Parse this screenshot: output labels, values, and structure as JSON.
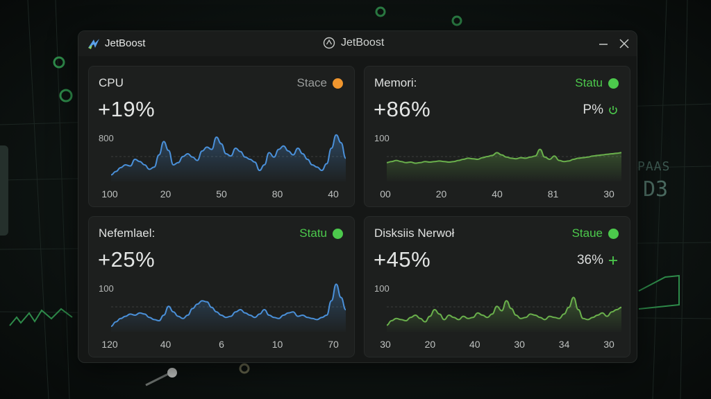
{
  "window": {
    "app_name": "JetBoost",
    "title": "JetBoost"
  },
  "colors": {
    "blue": "#4a90d9",
    "green": "#6ab04c",
    "orange": "#f0962e",
    "status_green": "#4cc94c"
  },
  "cards": [
    {
      "title": "CPU",
      "status_label": "Stace",
      "status_color": "#f0962e",
      "status_text_color": "#9a9d9c",
      "value": "+19%",
      "sub_value": "",
      "sub_icon": "",
      "y_label": "800",
      "line_color": "#4a90d9",
      "x_ticks": [
        "100",
        "20",
        "50",
        "80",
        "40"
      ],
      "series": [
        12,
        18,
        25,
        30,
        28,
        40,
        36,
        30,
        22,
        26,
        48,
        72,
        56,
        30,
        34,
        45,
        50,
        44,
        38,
        55,
        62,
        58,
        80,
        68,
        50,
        46,
        60,
        54,
        44,
        40,
        35,
        20,
        30,
        52,
        44,
        58,
        64,
        55,
        48,
        60,
        50,
        40,
        30,
        26,
        20,
        32,
        60,
        84,
        70,
        42
      ]
    },
    {
      "title": "Memori:",
      "status_label": "Statu",
      "status_color": "#4cc94c",
      "status_text_color": "#4cc94c",
      "value": "+86%",
      "sub_value": "P%",
      "sub_icon": "power-icon",
      "y_label": "100",
      "line_color": "#6ab04c",
      "x_ticks": [
        "00",
        "20",
        "40",
        "81",
        "30"
      ],
      "series": [
        34,
        36,
        38,
        36,
        34,
        35,
        33,
        34,
        36,
        35,
        36,
        37,
        36,
        35,
        36,
        38,
        40,
        42,
        41,
        40,
        43,
        45,
        47,
        52,
        48,
        44,
        42,
        41,
        43,
        42,
        44,
        46,
        58,
        44,
        40,
        46,
        38,
        36,
        37,
        40,
        42,
        43,
        44,
        46,
        47,
        48,
        49,
        50,
        51,
        52
      ]
    },
    {
      "title": "Nefemlael:",
      "status_label": "Statu",
      "status_color": "#4cc94c",
      "status_text_color": "#4cc94c",
      "value": "+25%",
      "sub_value": "",
      "sub_icon": "",
      "y_label": "100",
      "line_color": "#4a90d9",
      "x_ticks": [
        "120",
        "40",
        "6",
        "10",
        "70"
      ],
      "series": [
        10,
        18,
        24,
        28,
        32,
        30,
        34,
        32,
        26,
        22,
        20,
        30,
        46,
        36,
        28,
        24,
        30,
        42,
        50,
        56,
        54,
        44,
        36,
        30,
        26,
        28,
        36,
        40,
        34,
        30,
        26,
        32,
        40,
        30,
        26,
        24,
        30,
        34,
        36,
        28,
        30,
        26,
        24,
        22,
        26,
        30,
        56,
        86,
        62,
        40
      ]
    },
    {
      "title": "Disksiis Nerwoł",
      "status_label": "Staue",
      "status_color": "#4cc94c",
      "status_text_color": "#4cc94c",
      "value": "+45%",
      "sub_value": "36%",
      "sub_icon": "plus-icon",
      "y_label": "100",
      "line_color": "#6ab04c",
      "x_ticks": [
        "30",
        "20",
        "40",
        "30",
        "34",
        "30"
      ],
      "series": [
        12,
        20,
        24,
        22,
        20,
        26,
        30,
        24,
        18,
        28,
        40,
        32,
        22,
        30,
        26,
        22,
        28,
        24,
        26,
        34,
        30,
        26,
        32,
        46,
        38,
        56,
        42,
        30,
        24,
        26,
        32,
        30,
        26,
        22,
        28,
        26,
        24,
        32,
        44,
        62,
        40,
        24,
        22,
        26,
        30,
        34,
        28,
        36,
        40,
        44
      ]
    }
  ],
  "background": {
    "text_a": "PAAS",
    "text_b": "D3"
  }
}
